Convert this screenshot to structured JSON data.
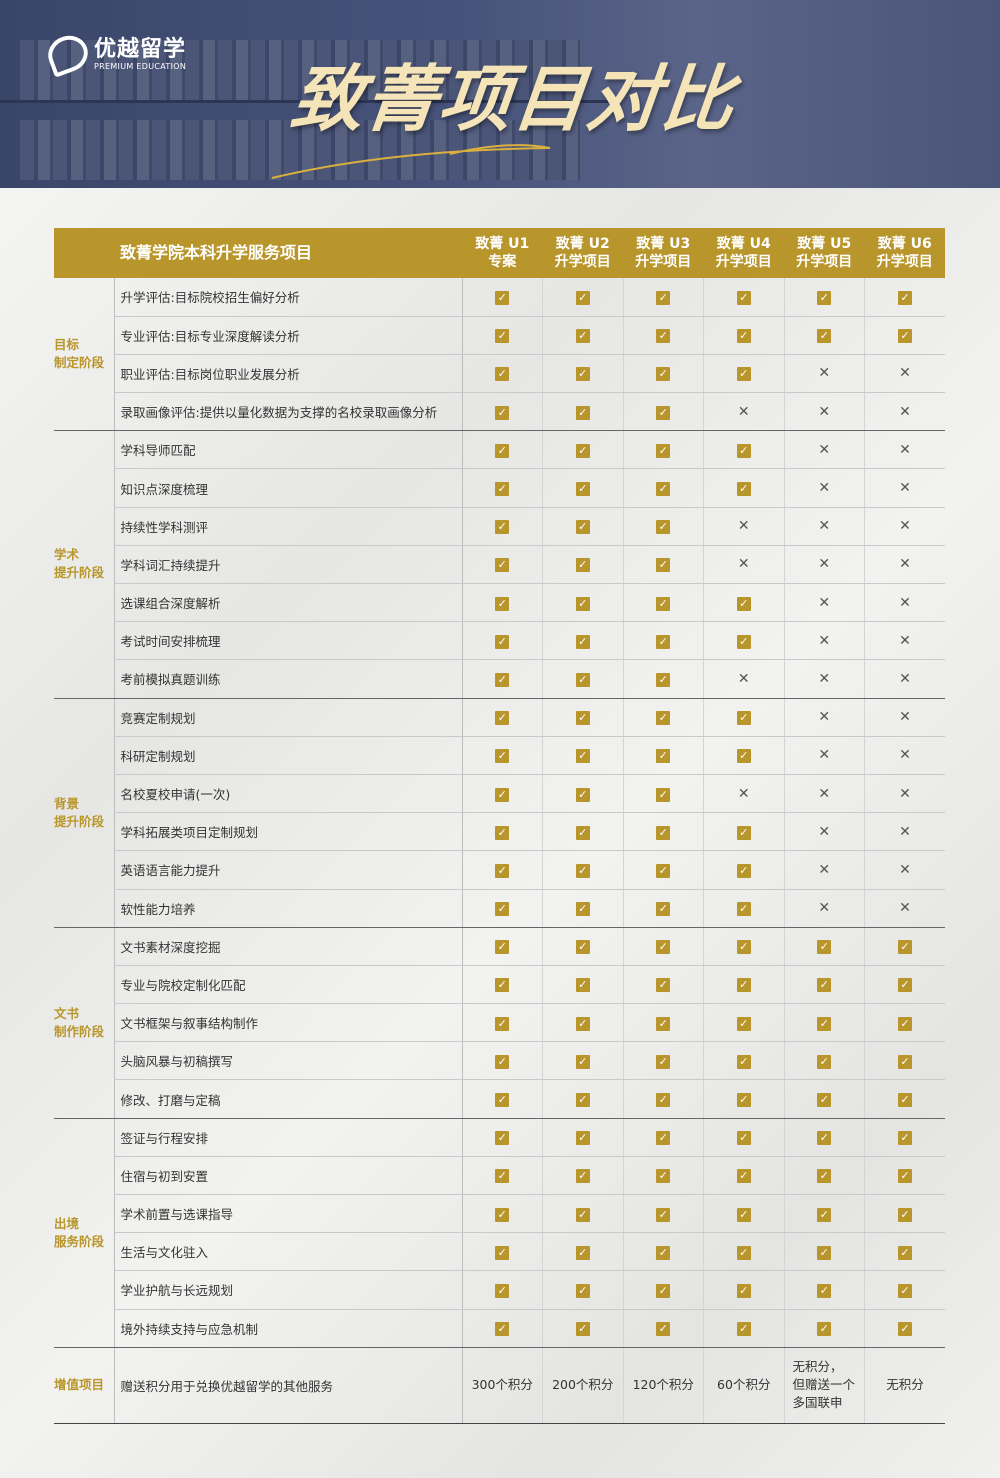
{
  "brand": {
    "name_cn": "优越留学",
    "name_en": "PREMIUM EDUCATION"
  },
  "title": "致菁项目对比",
  "colors": {
    "gold": "#b9962b",
    "navy": "#3a4668"
  },
  "table": {
    "header_main": "致菁学院本科升学服务项目",
    "columns": [
      {
        "line1": "致菁 U1",
        "line2": "专案"
      },
      {
        "line1": "致菁 U2",
        "line2": "升学项目"
      },
      {
        "line1": "致菁 U3",
        "line2": "升学项目"
      },
      {
        "line1": "致菁 U4",
        "line2": "升学项目"
      },
      {
        "line1": "致菁 U5",
        "line2": "升学项目"
      },
      {
        "line1": "致菁 U6",
        "line2": "升学项目"
      }
    ],
    "groups": [
      {
        "line1": "目标",
        "line2": "制定阶段",
        "rows": [
          {
            "item": "升学评估:目标院校招生偏好分析",
            "v": [
              1,
              1,
              1,
              1,
              1,
              1
            ]
          },
          {
            "item": "专业评估:目标专业深度解读分析",
            "v": [
              1,
              1,
              1,
              1,
              1,
              1
            ]
          },
          {
            "item": "职业评估:目标岗位职业发展分析",
            "v": [
              1,
              1,
              1,
              1,
              0,
              0
            ]
          },
          {
            "item": "录取画像评估:提供以量化数据为支撑的名校录取画像分析",
            "v": [
              1,
              1,
              1,
              0,
              0,
              0
            ]
          }
        ]
      },
      {
        "line1": "学术",
        "line2": "提升阶段",
        "rows": [
          {
            "item": "学科导师匹配",
            "v": [
              1,
              1,
              1,
              1,
              0,
              0
            ]
          },
          {
            "item": "知识点深度梳理",
            "v": [
              1,
              1,
              1,
              1,
              0,
              0
            ]
          },
          {
            "item": "持续性学科测评",
            "v": [
              1,
              1,
              1,
              0,
              0,
              0
            ]
          },
          {
            "item": "学科词汇持续提升",
            "v": [
              1,
              1,
              1,
              0,
              0,
              0
            ]
          },
          {
            "item": "选课组合深度解析",
            "v": [
              1,
              1,
              1,
              1,
              0,
              0
            ]
          },
          {
            "item": "考试时间安排梳理",
            "v": [
              1,
              1,
              1,
              1,
              0,
              0
            ]
          },
          {
            "item": "考前模拟真题训练",
            "v": [
              1,
              1,
              1,
              0,
              0,
              0
            ]
          }
        ]
      },
      {
        "line1": "背景",
        "line2": "提升阶段",
        "rows": [
          {
            "item": "竞赛定制规划",
            "v": [
              1,
              1,
              1,
              1,
              0,
              0
            ]
          },
          {
            "item": "科研定制规划",
            "v": [
              1,
              1,
              1,
              1,
              0,
              0
            ]
          },
          {
            "item": "名校夏校申请(一次)",
            "v": [
              1,
              1,
              1,
              0,
              0,
              0
            ]
          },
          {
            "item": "学科拓展类项目定制规划",
            "v": [
              1,
              1,
              1,
              1,
              0,
              0
            ]
          },
          {
            "item": "英语语言能力提升",
            "v": [
              1,
              1,
              1,
              1,
              0,
              0
            ]
          },
          {
            "item": "软性能力培养",
            "v": [
              1,
              1,
              1,
              1,
              0,
              0
            ]
          }
        ]
      },
      {
        "line1": "文书",
        "line2": "制作阶段",
        "rows": [
          {
            "item": "文书素材深度挖掘",
            "v": [
              1,
              1,
              1,
              1,
              1,
              1
            ]
          },
          {
            "item": "专业与院校定制化匹配",
            "v": [
              1,
              1,
              1,
              1,
              1,
              1
            ]
          },
          {
            "item": "文书框架与叙事结构制作",
            "v": [
              1,
              1,
              1,
              1,
              1,
              1
            ]
          },
          {
            "item": "头脑风暴与初稿撰写",
            "v": [
              1,
              1,
              1,
              1,
              1,
              1
            ]
          },
          {
            "item": "修改、打磨与定稿",
            "v": [
              1,
              1,
              1,
              1,
              1,
              1
            ]
          }
        ]
      },
      {
        "line1": "出境",
        "line2": "服务阶段",
        "rows": [
          {
            "item": "签证与行程安排",
            "v": [
              1,
              1,
              1,
              1,
              1,
              1
            ]
          },
          {
            "item": "住宿与初到安置",
            "v": [
              1,
              1,
              1,
              1,
              1,
              1
            ]
          },
          {
            "item": "学术前置与选课指导",
            "v": [
              1,
              1,
              1,
              1,
              1,
              1
            ]
          },
          {
            "item": "生活与文化驻入",
            "v": [
              1,
              1,
              1,
              1,
              1,
              1
            ]
          },
          {
            "item": "学业护航与长远规划",
            "v": [
              1,
              1,
              1,
              1,
              1,
              1
            ]
          },
          {
            "item": "境外持续支持与应急机制",
            "v": [
              1,
              1,
              1,
              1,
              1,
              1
            ]
          }
        ]
      }
    ],
    "bonus": {
      "label": "增值项目",
      "item": "赠送积分用于兑换优越留学的其他服务",
      "values": [
        "300个积分",
        "200个积分",
        "120个积分",
        "60个积分",
        "无积分，\n但赠送一个\n多国联申",
        "无积分"
      ]
    }
  }
}
